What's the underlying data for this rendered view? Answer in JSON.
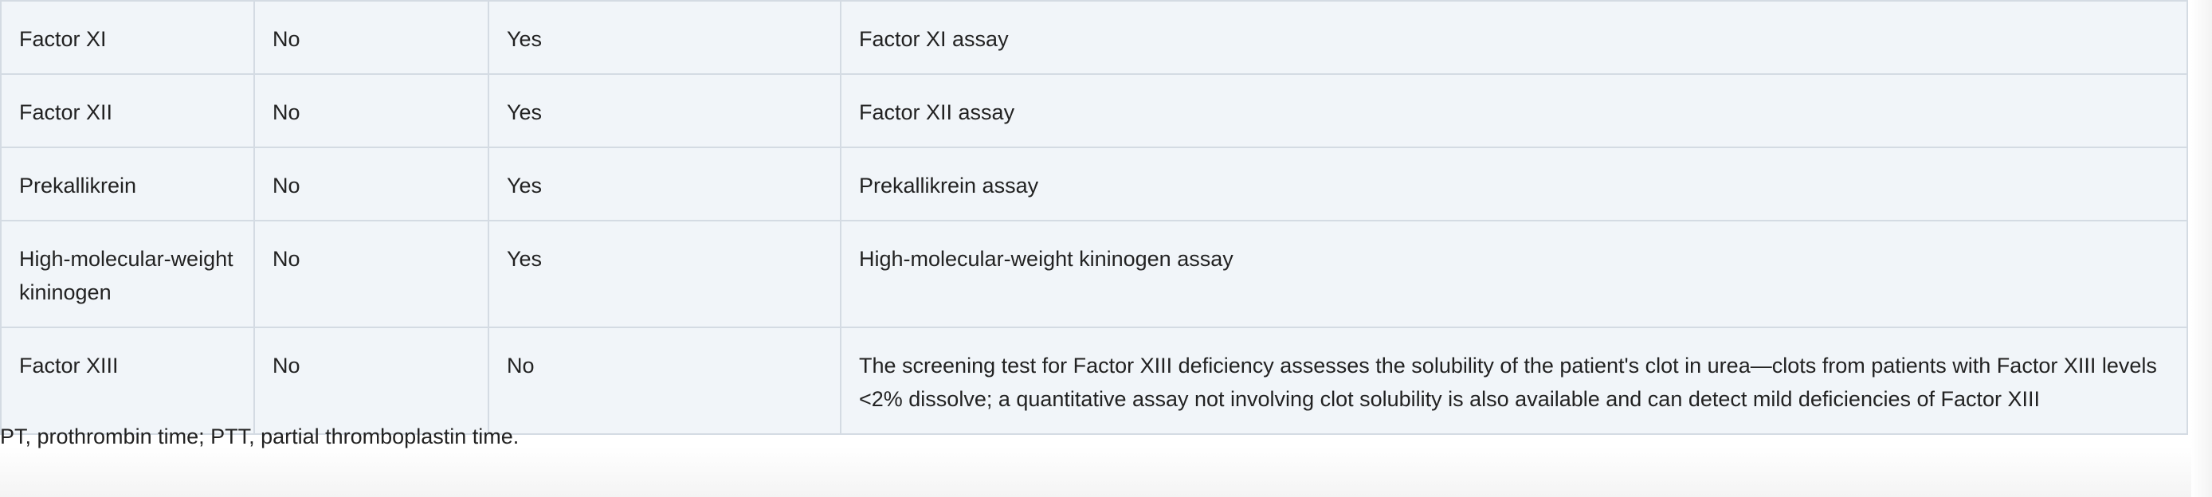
{
  "table": {
    "rows": [
      {
        "factor": "Factor XI",
        "pt": "No",
        "ptt": "Yes",
        "test": "Factor XI assay"
      },
      {
        "factor": "Factor XII",
        "pt": "No",
        "ptt": "Yes",
        "test": "Factor XII assay"
      },
      {
        "factor": "Prekallikrein",
        "pt": "No",
        "ptt": "Yes",
        "test": "Prekallikrein assay"
      },
      {
        "factor": "High-molecular-weight kininogen",
        "pt": "No",
        "ptt": "Yes",
        "test": "High-molecular-weight kininogen assay"
      },
      {
        "factor": "Factor XIII",
        "pt": "No",
        "ptt": "No",
        "test": "The screening test for Factor XIII deficiency assesses the solubility of the patient's clot in urea—clots from patients with Factor XIII levels <2% dissolve; a quantitative assay not involving clot solubility is also available and can detect mild deficiencies of Factor XIII"
      }
    ]
  },
  "footnote": "PT, prothrombin time; PTT, partial thromboplastin time.",
  "colors": {
    "cell_background": "#f1f5f9",
    "cell_border": "#d4dbe3",
    "text": "#222222"
  }
}
